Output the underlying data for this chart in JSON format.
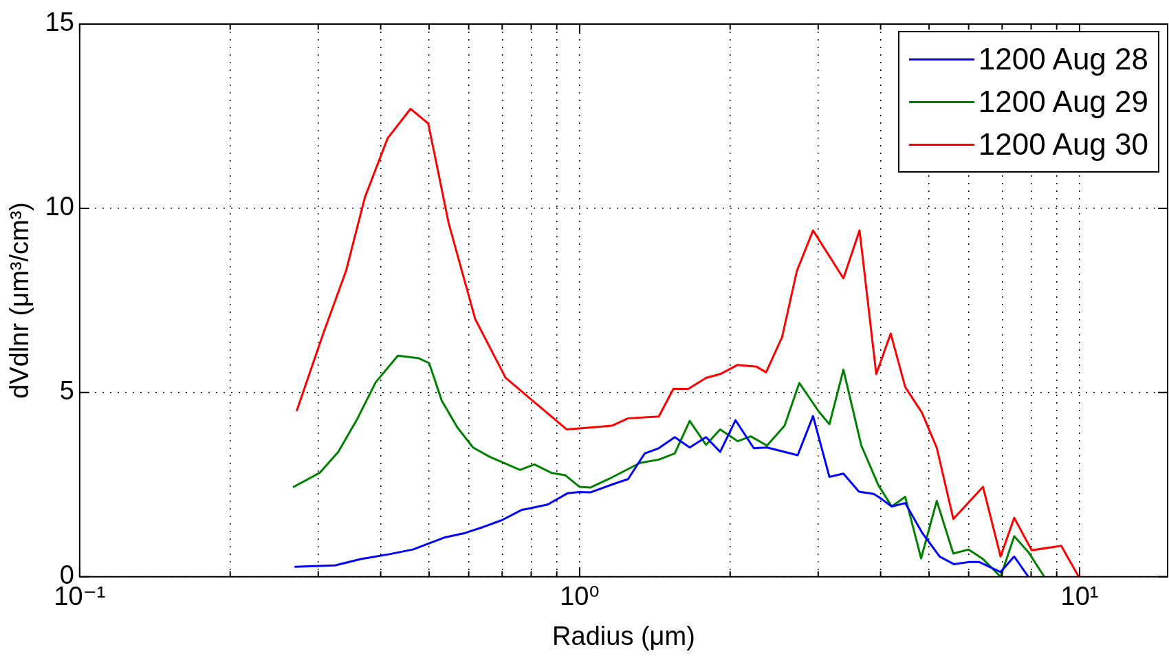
{
  "chart_data": {
    "type": "line",
    "xlabel": "Radius (μm)",
    "ylabel": "dVdlnr (μm³/cm³)",
    "log": "x",
    "xlim": [
      0.1,
      15
    ],
    "ylim": [
      0,
      15
    ],
    "xticks": [
      {
        "value": 0.1,
        "label": "10⁻¹"
      },
      {
        "value": 0.2,
        "label": null
      },
      {
        "value": 0.3,
        "label": null
      },
      {
        "value": 0.4,
        "label": null
      },
      {
        "value": 0.5,
        "label": null
      },
      {
        "value": 0.6,
        "label": null
      },
      {
        "value": 0.7,
        "label": null
      },
      {
        "value": 0.8,
        "label": null
      },
      {
        "value": 0.9,
        "label": null
      },
      {
        "value": 1,
        "label": "10⁰"
      },
      {
        "value": 2,
        "label": null
      },
      {
        "value": 3,
        "label": null
      },
      {
        "value": 4,
        "label": null
      },
      {
        "value": 5,
        "label": null
      },
      {
        "value": 6,
        "label": null
      },
      {
        "value": 7,
        "label": null
      },
      {
        "value": 8,
        "label": null
      },
      {
        "value": 9,
        "label": null
      },
      {
        "value": 10,
        "label": "10¹"
      }
    ],
    "yticks": [
      0,
      5,
      10,
      15
    ],
    "grid": true,
    "legend": "top right",
    "marker": "none",
    "line_style": "solid",
    "series": [
      {
        "name": "1200 Aug 28",
        "color": "#0000ff",
        "x": [
          0.27,
          0.324,
          0.365,
          0.415,
          0.464,
          0.538,
          0.587,
          0.641,
          0.7,
          0.764,
          0.863,
          0.947,
          1.0,
          1.05,
          1.17,
          1.25,
          1.35,
          1.44,
          1.55,
          1.66,
          1.79,
          1.91,
          2.05,
          2.23,
          2.37,
          2.73,
          2.93,
          3.16,
          3.37,
          3.62,
          3.87,
          3.96,
          4.21,
          4.48,
          4.84,
          5.25,
          5.61,
          6.0,
          6.3,
          6.95,
          7.4,
          7.9
        ],
        "values": [
          0.27,
          0.31,
          0.48,
          0.61,
          0.74,
          1.07,
          1.18,
          1.35,
          1.54,
          1.81,
          1.96,
          2.27,
          2.3,
          2.29,
          2.52,
          2.65,
          3.35,
          3.49,
          3.79,
          3.51,
          3.79,
          3.39,
          4.25,
          3.49,
          3.51,
          3.3,
          4.36,
          2.71,
          2.8,
          2.31,
          2.25,
          2.17,
          1.91,
          2.0,
          1.2,
          0.55,
          0.34,
          0.4,
          0.4,
          0.13,
          0.55,
          0
        ]
      },
      {
        "name": "1200 Aug 29",
        "color": "#008000",
        "x": [
          0.268,
          0.302,
          0.329,
          0.358,
          0.391,
          0.433,
          0.477,
          0.5,
          0.53,
          0.569,
          0.612,
          0.66,
          0.76,
          0.812,
          0.878,
          0.935,
          1.0,
          1.05,
          1.15,
          1.32,
          1.44,
          1.55,
          1.66,
          1.79,
          1.91,
          2.07,
          2.2,
          2.37,
          2.57,
          2.75,
          3.01,
          3.16,
          3.37,
          3.66,
          3.96,
          4.21,
          4.48,
          4.82,
          5.18,
          5.59,
          6.0,
          6.41,
          6.95,
          7.4,
          7.9,
          8.5
        ],
        "values": [
          2.44,
          2.82,
          3.39,
          4.25,
          5.28,
          6.0,
          5.93,
          5.8,
          4.78,
          4.06,
          3.51,
          3.26,
          2.9,
          3.05,
          2.82,
          2.76,
          2.44,
          2.42,
          2.67,
          3.09,
          3.18,
          3.35,
          4.23,
          3.58,
          4.0,
          3.68,
          3.81,
          3.56,
          4.1,
          5.26,
          4.48,
          4.14,
          5.62,
          3.56,
          2.48,
          1.91,
          2.17,
          0.5,
          2.06,
          0.63,
          0.74,
          0.48,
          0,
          1.1,
          0.67,
          0
        ]
      },
      {
        "name": "1200 Aug 30",
        "color": "#ff0000",
        "x": [
          0.272,
          0.307,
          0.341,
          0.372,
          0.413,
          0.459,
          0.498,
          0.547,
          0.618,
          0.711,
          0.818,
          0.942,
          1.05,
          1.16,
          1.25,
          1.44,
          1.54,
          1.65,
          1.79,
          1.91,
          2.07,
          2.26,
          2.36,
          2.54,
          2.72,
          2.93,
          3.37,
          3.63,
          3.92,
          4.19,
          4.48,
          4.84,
          5.18,
          5.59,
          6.41,
          6.95,
          7.4,
          8.02,
          9.19,
          9.96
        ],
        "values": [
          4.52,
          6.6,
          8.3,
          10.3,
          11.9,
          12.7,
          12.3,
          9.6,
          7.0,
          5.4,
          4.7,
          4.0,
          4.05,
          4.1,
          4.3,
          4.35,
          5.1,
          5.1,
          5.4,
          5.5,
          5.75,
          5.7,
          5.55,
          6.5,
          8.3,
          9.4,
          8.1,
          9.4,
          5.5,
          6.6,
          5.15,
          4.45,
          3.5,
          1.57,
          2.44,
          0.55,
          1.6,
          0.72,
          0.84,
          0
        ]
      }
    ]
  }
}
